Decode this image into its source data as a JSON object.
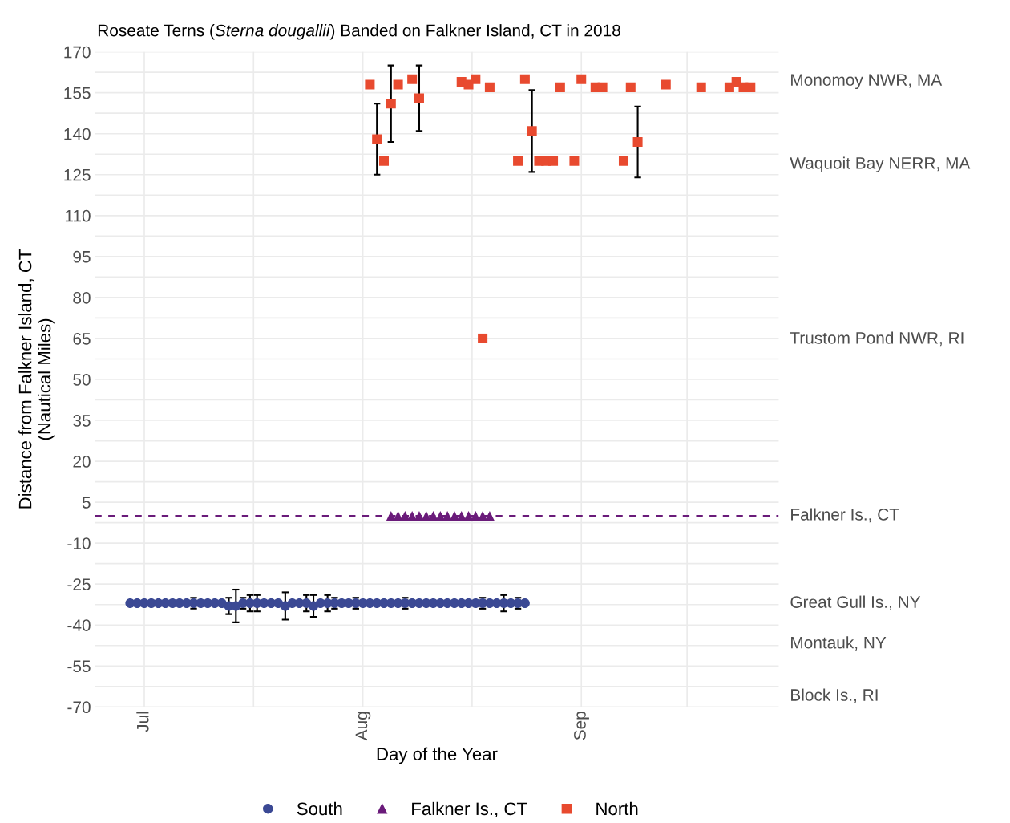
{
  "chart_data": {
    "type": "scatter",
    "title": "Roseate Terns (Sterna dougallii) Banded on Falkner Island, CT in 2018",
    "xlabel": "Day of the Year",
    "ylabel": "Distance from Falkner Island, CT\n(Nautical Miles)",
    "xlim": [
      "2018-06-24",
      "2018-09-29"
    ],
    "xticks": [
      {
        "value": "2018-07-01",
        "label": "Jul"
      },
      {
        "value": "2018-07-16T12:00",
        "label": null
      },
      {
        "value": "2018-08-01",
        "label": "Aug"
      },
      {
        "value": "2018-08-16T12:00",
        "label": null
      },
      {
        "value": "2018-09-01",
        "label": "Sep"
      },
      {
        "value": "2018-09-16",
        "label": null
      }
    ],
    "ylim": [
      -70,
      170
    ],
    "yticks": [
      -70,
      {
        "value": -62.5,
        "label": null
      },
      -55,
      {
        "value": -47.5,
        "label": null
      },
      -40,
      {
        "value": -32.5,
        "label": null
      },
      -25,
      {
        "value": -17.5,
        "label": null
      },
      -10,
      {
        "value": -2.5,
        "label": null
      },
      5,
      {
        "value": 12.5,
        "label": null
      },
      20,
      {
        "value": 27.5,
        "label": null
      },
      35,
      {
        "value": 42.5,
        "label": null
      },
      50,
      {
        "value": 57.5,
        "label": null
      },
      65,
      {
        "value": 72.5,
        "label": null
      },
      80,
      {
        "value": 87.5,
        "label": null
      },
      95,
      {
        "value": 102.5,
        "label": null
      },
      110,
      {
        "value": 117.5,
        "label": null
      },
      125,
      {
        "value": 132.5,
        "label": null
      },
      140,
      {
        "value": 147.5,
        "label": null
      },
      155,
      {
        "value": 162.5,
        "label": null
      },
      170
    ],
    "annotations": [
      "Monomoy NWR, MA",
      "Waquoit Bay NERR, MA",
      "Trustom Pond NWR, RI",
      "Great Gull Is., NY",
      "Montauk, NY",
      "Block Is., RI"
    ],
    "grid": true,
    "legend": "bottom",
    "ref_lines": [
      {
        "axis": "y",
        "value": 0,
        "label": "Falkner Is., CT",
        "color": "#6a1b7a",
        "line_style": "dashed"
      }
    ],
    "series": [
      {
        "name": "South",
        "color": "#3b4994",
        "marker": "circle",
        "x": [
          "2018-06-29",
          "2018-06-30",
          "2018-07-01",
          "2018-07-02",
          "2018-07-03",
          "2018-07-04",
          "2018-07-05",
          "2018-07-06",
          "2018-07-07",
          "2018-07-08",
          "2018-07-09",
          "2018-07-10",
          "2018-07-11",
          "2018-07-12",
          "2018-07-13",
          "2018-07-14",
          "2018-07-15",
          "2018-07-16",
          "2018-07-17",
          "2018-07-18",
          "2018-07-19",
          "2018-07-20",
          "2018-07-21",
          "2018-07-22",
          "2018-07-23",
          "2018-07-24",
          "2018-07-25",
          "2018-07-26",
          "2018-07-27",
          "2018-07-28",
          "2018-07-29",
          "2018-07-30",
          "2018-07-31",
          "2018-08-01",
          "2018-08-02",
          "2018-08-03",
          "2018-08-04",
          "2018-08-05",
          "2018-08-06",
          "2018-08-07",
          "2018-08-08",
          "2018-08-09",
          "2018-08-10",
          "2018-08-11",
          "2018-08-12",
          "2018-08-13",
          "2018-08-14",
          "2018-08-15",
          "2018-08-16",
          "2018-08-17",
          "2018-08-18",
          "2018-08-19",
          "2018-08-20",
          "2018-08-21",
          "2018-08-22",
          "2018-08-23",
          "2018-08-24"
        ],
        "values": [
          -32,
          -32,
          -32,
          -32,
          -32,
          -32,
          -32,
          -32,
          -32,
          -32,
          -32,
          -32,
          -32,
          -32,
          -33,
          -33,
          -32,
          -32,
          -32,
          -32,
          -32,
          -32,
          -33,
          -32,
          -32,
          -32,
          -33,
          -32,
          -32,
          -32,
          -32,
          -32,
          -32,
          -32,
          -32,
          -32,
          -32,
          -32,
          -32,
          -32,
          -32,
          -32,
          -32,
          -32,
          -32,
          -32,
          -32,
          -32,
          -32,
          -32,
          -32,
          -32,
          -32,
          -32,
          -32,
          -32,
          -32
        ],
        "errors": [
          null,
          null,
          null,
          null,
          null,
          null,
          null,
          null,
          null,
          2,
          null,
          null,
          null,
          null,
          3,
          6,
          2,
          3,
          3,
          null,
          null,
          null,
          5,
          null,
          null,
          3,
          4,
          null,
          3,
          2,
          null,
          null,
          2,
          null,
          null,
          null,
          null,
          null,
          null,
          2,
          null,
          null,
          null,
          null,
          null,
          null,
          null,
          null,
          null,
          null,
          2,
          null,
          null,
          3,
          null,
          2,
          null
        ]
      },
      {
        "name": "Falkner Is., CT",
        "color": "#6a1b7a",
        "marker": "triangle",
        "x": [
          "2018-08-05",
          "2018-08-06",
          "2018-08-07",
          "2018-08-08",
          "2018-08-09",
          "2018-08-10",
          "2018-08-11",
          "2018-08-12",
          "2018-08-13",
          "2018-08-14",
          "2018-08-15",
          "2018-08-16",
          "2018-08-17",
          "2018-08-18",
          "2018-08-19"
        ],
        "values": [
          0,
          0,
          0,
          0,
          0,
          0,
          0,
          0,
          0,
          0,
          0,
          0,
          0,
          0,
          0
        ]
      },
      {
        "name": "North",
        "color": "#e84a2f",
        "marker": "square",
        "x": [
          "2018-08-02",
          "2018-08-03",
          "2018-08-04",
          "2018-08-05",
          "2018-08-06",
          "2018-08-08",
          "2018-08-09",
          "2018-08-15",
          "2018-08-16",
          "2018-08-17",
          "2018-08-18",
          "2018-08-19",
          "2018-08-23",
          "2018-08-24",
          "2018-08-25",
          "2018-08-26",
          "2018-08-27",
          "2018-08-28",
          "2018-08-29",
          "2018-08-31",
          "2018-09-01",
          "2018-09-03",
          "2018-09-04",
          "2018-09-07",
          "2018-09-08",
          "2018-09-09",
          "2018-09-13",
          "2018-09-18",
          "2018-09-22",
          "2018-09-23",
          "2018-09-24",
          "2018-09-25"
        ],
        "values": [
          158,
          138,
          130,
          151,
          158,
          160,
          153,
          159,
          158,
          160,
          65,
          157,
          130,
          160,
          141,
          130,
          130,
          130,
          157,
          130,
          160,
          157,
          157,
          130,
          157,
          137,
          158,
          157,
          157,
          159,
          157,
          157
        ],
        "errors": [
          null,
          13,
          null,
          14,
          null,
          null,
          12,
          null,
          null,
          null,
          null,
          null,
          null,
          null,
          15,
          null,
          null,
          null,
          null,
          null,
          null,
          null,
          null,
          null,
          null,
          13,
          null,
          null,
          null,
          null,
          null,
          null
        ]
      }
    ]
  }
}
